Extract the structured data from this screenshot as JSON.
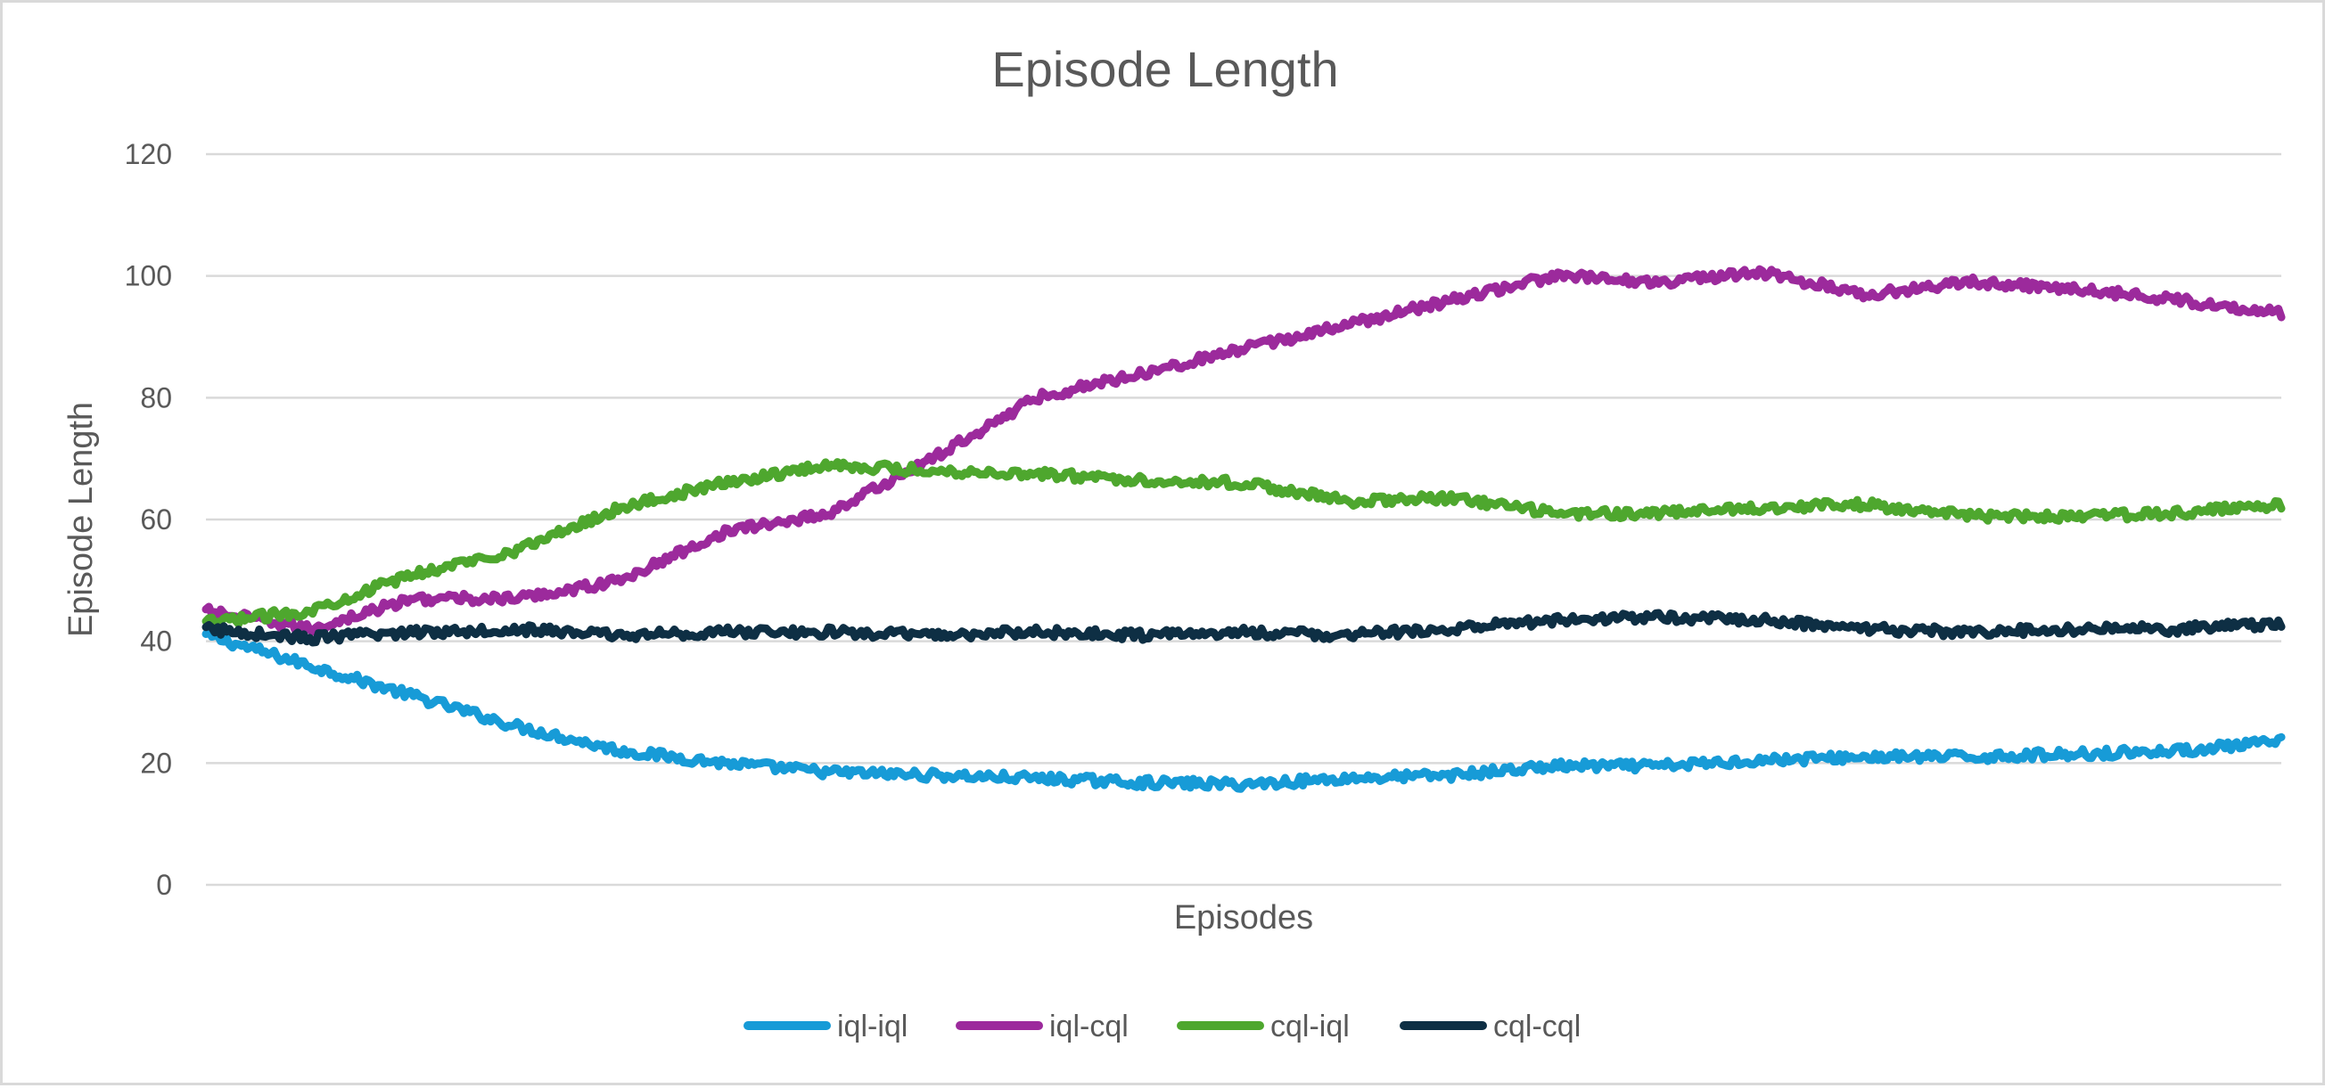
{
  "chart_data": {
    "type": "line",
    "title": "Episode Length",
    "xlabel": "Episodes",
    "ylabel": "Episode Length",
    "ylim": [
      0,
      120
    ],
    "yticks": [
      "0",
      "20",
      "40",
      "60",
      "80",
      "100",
      "120"
    ],
    "grid": true,
    "legend_position": "bottom",
    "x": [
      0,
      0.05,
      0.1,
      0.15,
      0.2,
      0.25,
      0.3,
      0.35,
      0.4,
      0.45,
      0.5,
      0.55,
      0.6,
      0.65,
      0.7,
      0.75,
      0.8,
      0.85,
      0.9,
      0.95,
      1.0
    ],
    "series": [
      {
        "name": "iql-iql",
        "color": "#179bd7",
        "values": [
          41,
          36,
          31,
          26,
          22,
          20,
          18.5,
          18,
          17.5,
          16.8,
          16.5,
          17.5,
          18,
          19.5,
          19.5,
          20.5,
          21,
          21,
          21.5,
          22,
          23.5
        ]
      },
      {
        "name": "iql-cql",
        "color": "#9c2a9c",
        "values": [
          45,
          42,
          47,
          47,
          50,
          58,
          61,
          70,
          80,
          84,
          88,
          92,
          96,
          100,
          99,
          100.5,
          97,
          99,
          98,
          96,
          94
        ]
      },
      {
        "name": "cql-iql",
        "color": "#4ea72e",
        "values": [
          43,
          45,
          51,
          55,
          62,
          66,
          69,
          68,
          67.5,
          66.5,
          66,
          63,
          63.5,
          61,
          61,
          62,
          62.5,
          60.5,
          60.5,
          61,
          62.5
        ]
      },
      {
        "name": "cql-cql",
        "color": "#0e2f44",
        "values": [
          42,
          40.5,
          41.5,
          42,
          41,
          41.5,
          41.5,
          41,
          41.5,
          41,
          41.5,
          41,
          42,
          43.5,
          44,
          43.5,
          42,
          41.5,
          42,
          42,
          43
        ]
      }
    ]
  }
}
